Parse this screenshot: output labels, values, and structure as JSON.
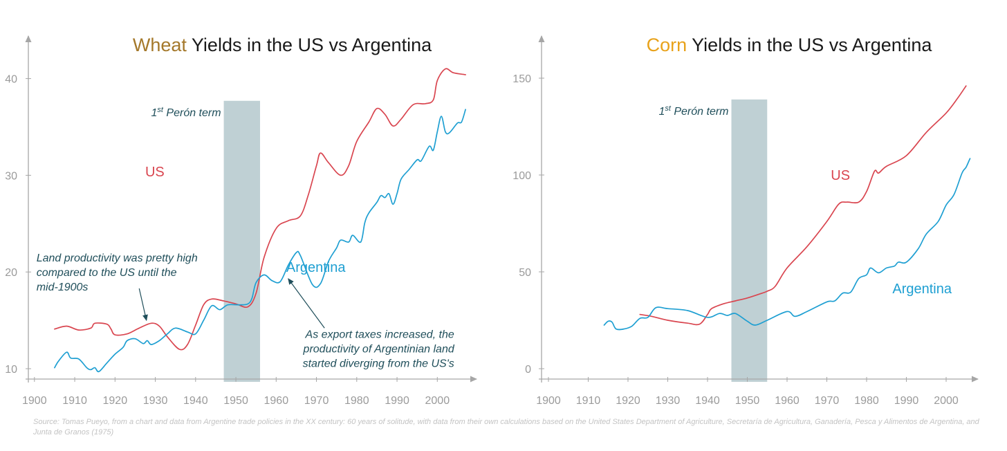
{
  "colors": {
    "us": "#d9454f",
    "argentina": "#1e9fd2",
    "wheat_accent": "#a4782a",
    "corn_accent": "#e8a21b",
    "peron_band": "#bfd0d4",
    "axis": "#a6a6a6",
    "annotation": "#1f4e5a"
  },
  "source": "Source: Tomas Pueyo, from a chart and data from Argentine trade policies in the XX century: 60 years of solitude, with data from their own calculations based on the United States Department of Agriculture, Secretaría de Agricultura, Ganadería, Pesca y Alimentos de Argentina, and Junta de Granos (1975)",
  "chart_data": [
    {
      "id": "wheat",
      "type": "line",
      "title_highlight": "Wheat",
      "title_rest": " Yields in the US vs Argentina",
      "xlim": [
        1898,
        2010
      ],
      "ylim": [
        8,
        45
      ],
      "x_ticks": [
        1900,
        1910,
        1920,
        1930,
        1940,
        1950,
        1960,
        1970,
        1980,
        1990,
        2000
      ],
      "y_ticks": [
        10,
        20,
        30,
        40
      ],
      "band": {
        "label_sup": "1st",
        "label_sup_a": "1",
        "label_sup_b": "st",
        "label_rest": " Perón term",
        "from": 1947,
        "to": 1956,
        "top": 37.7
      },
      "series": [
        {
          "name": "US",
          "label": "US",
          "label_at": [
            1927.5,
            29.9
          ],
          "points": [
            [
              1905,
              14.1
            ],
            [
              1908,
              14.4
            ],
            [
              1911,
              14.0
            ],
            [
              1914,
              14.2
            ],
            [
              1915,
              14.7
            ],
            [
              1918,
              14.6
            ],
            [
              1919,
              14.1
            ],
            [
              1920,
              13.5
            ],
            [
              1923,
              13.6
            ],
            [
              1926,
              14.2
            ],
            [
              1929,
              14.7
            ],
            [
              1931,
              14.4
            ],
            [
              1933,
              13.3
            ],
            [
              1936,
              12.0
            ],
            [
              1938,
              12.5
            ],
            [
              1940,
              14.5
            ],
            [
              1942,
              16.6
            ],
            [
              1944,
              17.2
            ],
            [
              1947,
              17.0
            ],
            [
              1950,
              16.7
            ],
            [
              1953,
              16.4
            ],
            [
              1955,
              17.8
            ],
            [
              1957,
              21.5
            ],
            [
              1960,
              24.5
            ],
            [
              1963,
              25.3
            ],
            [
              1966,
              25.8
            ],
            [
              1968,
              28.0
            ],
            [
              1970,
              31.0
            ],
            [
              1971,
              32.3
            ],
            [
              1973,
              31.3
            ],
            [
              1976,
              30.0
            ],
            [
              1978,
              31.0
            ],
            [
              1980,
              33.5
            ],
            [
              1983,
              35.5
            ],
            [
              1985,
              36.9
            ],
            [
              1987,
              36.3
            ],
            [
              1989,
              35.1
            ],
            [
              1991,
              35.8
            ],
            [
              1994,
              37.3
            ],
            [
              1997,
              37.4
            ],
            [
              1999,
              37.8
            ],
            [
              2000,
              39.8
            ],
            [
              2002,
              41.0
            ],
            [
              2004,
              40.6
            ],
            [
              2007,
              40.4
            ]
          ]
        },
        {
          "name": "Argentina",
          "label": "Argentina",
          "label_at": [
            1962.5,
            20.0
          ],
          "points": [
            [
              1905,
              10.1
            ],
            [
              1906,
              10.8
            ],
            [
              1908,
              11.7
            ],
            [
              1909,
              11.1
            ],
            [
              1911,
              11.0
            ],
            [
              1913,
              10.1
            ],
            [
              1914,
              9.9
            ],
            [
              1915,
              10.1
            ],
            [
              1916,
              9.7
            ],
            [
              1918,
              10.6
            ],
            [
              1920,
              11.5
            ],
            [
              1922,
              12.2
            ],
            [
              1923,
              12.9
            ],
            [
              1925,
              13.1
            ],
            [
              1927,
              12.6
            ],
            [
              1928,
              12.9
            ],
            [
              1929,
              12.5
            ],
            [
              1931,
              12.9
            ],
            [
              1933,
              13.6
            ],
            [
              1935,
              14.2
            ],
            [
              1938,
              13.8
            ],
            [
              1940,
              13.6
            ],
            [
              1942,
              15.0
            ],
            [
              1944,
              16.5
            ],
            [
              1946,
              16.1
            ],
            [
              1948,
              16.6
            ],
            [
              1951,
              16.6
            ],
            [
              1953,
              16.7
            ],
            [
              1954,
              17.3
            ],
            [
              1955,
              18.9
            ],
            [
              1957,
              19.7
            ],
            [
              1959,
              19.1
            ],
            [
              1961,
              19.0
            ],
            [
              1963,
              20.7
            ],
            [
              1965,
              22.0
            ],
            [
              1966,
              21.7
            ],
            [
              1969,
              18.7
            ],
            [
              1971,
              18.8
            ],
            [
              1973,
              21.1
            ],
            [
              1975,
              22.5
            ],
            [
              1976,
              23.3
            ],
            [
              1978,
              23.1
            ],
            [
              1979,
              23.8
            ],
            [
              1981,
              23.1
            ],
            [
              1982,
              25.1
            ],
            [
              1983,
              26.1
            ],
            [
              1985,
              27.2
            ],
            [
              1986,
              27.9
            ],
            [
              1987,
              27.7
            ],
            [
              1988,
              28.1
            ],
            [
              1989,
              27.0
            ],
            [
              1990,
              28.1
            ],
            [
              1991,
              29.6
            ],
            [
              1993,
              30.6
            ],
            [
              1995,
              31.6
            ],
            [
              1996,
              31.5
            ],
            [
              1998,
              33.0
            ],
            [
              1999,
              32.6
            ],
            [
              2000,
              34.5
            ],
            [
              2001,
              36.1
            ],
            [
              2002,
              34.5
            ],
            [
              2003,
              34.4
            ],
            [
              2005,
              35.4
            ],
            [
              2006,
              35.5
            ],
            [
              2007,
              36.8
            ]
          ]
        }
      ],
      "annotations": [
        {
          "lines": [
            "Land productivity was pretty high",
            "compared to the US until the",
            "mid-1900s"
          ],
          "text_at": [
            1900.5,
            21.1
          ],
          "anchor": "start",
          "arrow_from": [
            1926.0,
            18.3
          ],
          "arrow_to": [
            1927.8,
            15.0
          ]
        },
        {
          "lines": [
            "As export taxes increased, the",
            "productivity of Argentinian land",
            "started diverging from the US's"
          ],
          "text_at": [
            2004.2,
            13.2
          ],
          "anchor": "end",
          "arrow_from": [
            1972.0,
            14.2
          ],
          "arrow_to": [
            1963.0,
            19.3
          ]
        }
      ]
    },
    {
      "id": "corn",
      "type": "line",
      "title_highlight": "Corn",
      "title_rest": " Yields in the US vs Argentina",
      "xlim": [
        1898,
        2010
      ],
      "ylim": [
        -6,
        172
      ],
      "x_ticks": [
        1900,
        1910,
        1920,
        1930,
        1940,
        1950,
        1960,
        1970,
        1980,
        1990,
        2000
      ],
      "y_ticks": [
        0,
        50,
        100,
        150
      ],
      "band": {
        "label_sup": "1st",
        "label_sup_a": "1",
        "label_sup_b": "st",
        "label_rest": " Perón term",
        "from": 1946,
        "to": 1955,
        "top": 139
      },
      "series": [
        {
          "name": "US",
          "label": "US",
          "label_at": [
            1971.0,
            97.5
          ],
          "points": [
            [
              1923,
              28
            ],
            [
              1926,
              27
            ],
            [
              1930,
              25
            ],
            [
              1935,
              23.5
            ],
            [
              1938,
              23
            ],
            [
              1940,
              28
            ],
            [
              1941,
              31
            ],
            [
              1944,
              33.5
            ],
            [
              1947,
              35
            ],
            [
              1950,
              36.5
            ],
            [
              1953,
              38.5
            ],
            [
              1955,
              40
            ],
            [
              1957,
              42.5
            ],
            [
              1960,
              52
            ],
            [
              1965,
              63
            ],
            [
              1970,
              76
            ],
            [
              1973,
              85
            ],
            [
              1975,
              86
            ],
            [
              1978,
              86
            ],
            [
              1980,
              91.5
            ],
            [
              1982,
              102
            ],
            [
              1983,
              101
            ],
            [
              1985,
              104.5
            ],
            [
              1990,
              110
            ],
            [
              1995,
              122
            ],
            [
              2000,
              132
            ],
            [
              2003,
              140
            ],
            [
              2005,
              146
            ]
          ]
        },
        {
          "name": "Argentina",
          "label": "Argentina",
          "label_at": [
            1986.5,
            39.0
          ],
          "points": [
            [
              1914,
              22.5
            ],
            [
              1915,
              24.5
            ],
            [
              1916,
              24
            ],
            [
              1917,
              20.5
            ],
            [
              1919,
              20.5
            ],
            [
              1921,
              22
            ],
            [
              1923,
              26
            ],
            [
              1925,
              26.5
            ],
            [
              1927,
              31.5
            ],
            [
              1930,
              31
            ],
            [
              1935,
              30
            ],
            [
              1940,
              26.5
            ],
            [
              1943,
              28.5
            ],
            [
              1945,
              27.5
            ],
            [
              1947,
              28.5
            ],
            [
              1950,
              24.5
            ],
            [
              1952,
              22.5
            ],
            [
              1955,
              25
            ],
            [
              1960,
              29.5
            ],
            [
              1962,
              27
            ],
            [
              1965,
              29.5
            ],
            [
              1970,
              34.5
            ],
            [
              1972,
              35
            ],
            [
              1974,
              39
            ],
            [
              1976,
              39.5
            ],
            [
              1978,
              46.5
            ],
            [
              1980,
              48.5
            ],
            [
              1981,
              52
            ],
            [
              1983,
              49.5
            ],
            [
              1985,
              52
            ],
            [
              1987,
              53
            ],
            [
              1988,
              55
            ],
            [
              1990,
              55
            ],
            [
              1993,
              62
            ],
            [
              1995,
              69.5
            ],
            [
              1998,
              76
            ],
            [
              2000,
              84.5
            ],
            [
              2002,
              90
            ],
            [
              2004,
              101
            ],
            [
              2005,
              104
            ],
            [
              2006,
              108.5
            ]
          ]
        }
      ],
      "annotations": []
    }
  ]
}
